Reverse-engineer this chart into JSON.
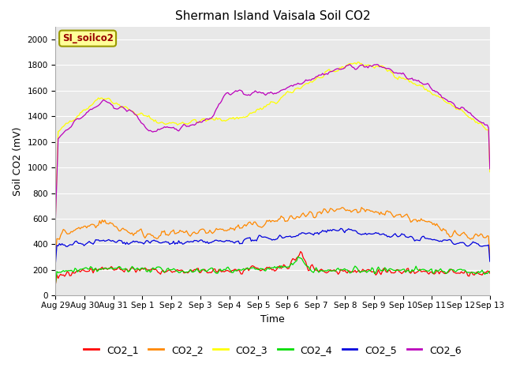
{
  "title": "Sherman Island Vaisala Soil CO2",
  "xlabel": "Time",
  "ylabel": "Soil CO2 (mV)",
  "ylim": [
    0,
    2100
  ],
  "yticks": [
    0,
    200,
    400,
    600,
    800,
    1000,
    1200,
    1400,
    1600,
    1800,
    2000
  ],
  "background_color": "#e8e8e8",
  "figure_color": "#ffffff",
  "label_box_text": "SI_soilco2",
  "label_box_color": "#ffff99",
  "label_box_text_color": "#990000",
  "series_colors": {
    "CO2_1": "#ff0000",
    "CO2_2": "#ff8800",
    "CO2_3": "#ffff00",
    "CO2_4": "#00dd00",
    "CO2_5": "#0000dd",
    "CO2_6": "#bb00bb"
  },
  "xtick_labels": [
    "Aug 29",
    "Aug 30",
    "Aug 31",
    "Sep 1",
    "Sep 2",
    "Sep 3",
    "Sep 4",
    "Sep 5",
    "Sep 6",
    "Sep 7",
    "Sep 8",
    "Sep 9",
    "Sep 10",
    "Sep 11",
    "Sep 12",
    "Sep 13"
  ],
  "n_points": 336,
  "title_fontsize": 11,
  "axis_label_fontsize": 9,
  "tick_fontsize": 7.5,
  "legend_fontsize": 9
}
